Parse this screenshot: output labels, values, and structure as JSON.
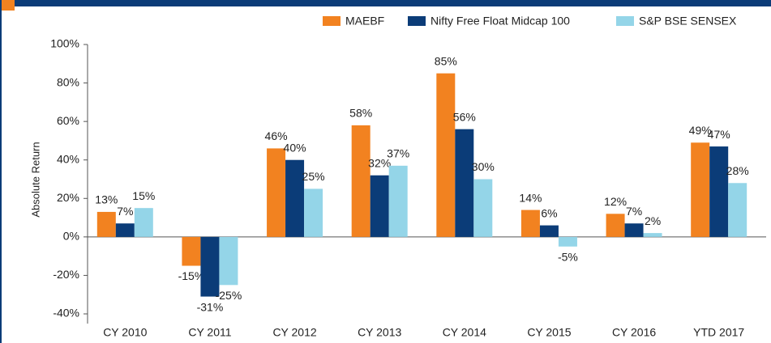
{
  "chart_data": {
    "type": "bar",
    "y_label": "Absolute Return",
    "categories": [
      "CY 2010",
      "CY 2011",
      "CY 2012",
      "CY 2013",
      "CY 2014",
      "CY 2015",
      "CY 2016",
      "YTD 2017"
    ],
    "series": [
      {
        "name": "MAEBF",
        "color": "#f28220",
        "values": [
          13,
          -15,
          46,
          58,
          85,
          14,
          12,
          49
        ],
        "value_labels": [
          "13%",
          "-15%",
          "46%",
          "58%",
          "85%",
          "14%",
          "12%",
          "49%"
        ]
      },
      {
        "name": "Nifty Free Float Midcap 100",
        "color": "#0b3c78",
        "values": [
          7,
          -31,
          40,
          32,
          56,
          6,
          7,
          47
        ],
        "value_labels": [
          "7%",
          "-31%",
          "40%",
          "32%",
          "56%",
          "6%",
          "7%",
          "47%"
        ]
      },
      {
        "name": "S&P BSE SENSEX",
        "color": "#94d5e8",
        "values": [
          15,
          -25,
          25,
          37,
          30,
          -5,
          2,
          28
        ],
        "value_labels": [
          "15%",
          "-25%",
          "25%",
          "37%",
          "30%",
          "-5%",
          "2%",
          "28%"
        ]
      }
    ],
    "ylim": [
      -40,
      100
    ],
    "yticks": [
      {
        "value": -40,
        "label": "-40%"
      },
      {
        "value": -20,
        "label": "-20%"
      },
      {
        "value": 0,
        "label": "0%"
      },
      {
        "value": 20,
        "label": "20%"
      },
      {
        "value": 40,
        "label": "40%"
      },
      {
        "value": 60,
        "label": "60%"
      },
      {
        "value": 80,
        "label": "80%"
      },
      {
        "value": 100,
        "label": "100%"
      }
    ],
    "grid": false,
    "legend": "top"
  }
}
